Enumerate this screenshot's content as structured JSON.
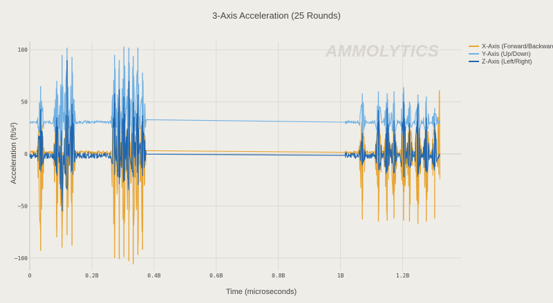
{
  "watermark": "AMMOLYTICS",
  "chart_data": {
    "type": "line",
    "title": "3-Axis Acceleration (25 Rounds)",
    "xlabel": "Time (microseconds)",
    "ylabel": "Acceleration (ft/s²)",
    "x_ticks": [
      {
        "value": 0,
        "label": "0"
      },
      {
        "value": 0.2,
        "label": "0.2B"
      },
      {
        "value": 0.4,
        "label": "0.4B"
      },
      {
        "value": 0.6,
        "label": "0.6B"
      },
      {
        "value": 0.8,
        "label": "0.8B"
      },
      {
        "value": 1.0,
        "label": "1B"
      },
      {
        "value": 1.2,
        "label": "1.2B"
      }
    ],
    "y_ticks": [
      {
        "value": 100,
        "label": "100"
      },
      {
        "value": 50,
        "label": "50"
      },
      {
        "value": 0,
        "label": "0"
      },
      {
        "value": -50,
        "label": "−50"
      },
      {
        "value": -100,
        "label": "−100"
      }
    ],
    "xlim": [
      0,
      1.39
    ],
    "ylim": [
      -112,
      108
    ],
    "grid": true,
    "legend_position": "top-right",
    "series": [
      {
        "name": "X-Axis (Forward/Backward)",
        "color": "#e8a531",
        "baseline": 1.5,
        "noise": 1.5,
        "segments": [
          [
            0.0,
            0.375
          ],
          [
            1.015,
            1.32
          ]
        ],
        "spikes": [
          {
            "x": 0.035,
            "y": -93
          },
          {
            "x": 0.087,
            "y": -80
          },
          {
            "x": 0.104,
            "y": -90
          },
          {
            "x": 0.12,
            "y": -78
          },
          {
            "x": 0.136,
            "y": -88
          },
          {
            "x": 0.273,
            "y": -100
          },
          {
            "x": 0.288,
            "y": -101
          },
          {
            "x": 0.303,
            "y": -99
          },
          {
            "x": 0.319,
            "y": -103
          },
          {
            "x": 0.333,
            "y": -106
          },
          {
            "x": 0.348,
            "y": -97
          },
          {
            "x": 0.363,
            "y": -92
          },
          {
            "x": 1.07,
            "y": -63
          },
          {
            "x": 1.122,
            "y": -65
          },
          {
            "x": 1.15,
            "y": -64
          },
          {
            "x": 1.172,
            "y": -62
          },
          {
            "x": 1.203,
            "y": -64
          },
          {
            "x": 1.222,
            "y": -65
          },
          {
            "x": 1.249,
            "y": -67
          },
          {
            "x": 1.276,
            "y": -65
          },
          {
            "x": 1.303,
            "y": -62
          },
          {
            "x": 1.318,
            "y": 61
          }
        ]
      },
      {
        "name": "Y-Axis (Up/Down)",
        "color": "#6fb0e3",
        "baseline": 30.5,
        "noise": 1.5,
        "segments": [
          [
            0.0,
            0.375
          ],
          [
            1.015,
            1.32
          ]
        ],
        "spikes": [
          {
            "x": 0.035,
            "y": 65
          },
          {
            "x": 0.087,
            "y": 70
          },
          {
            "x": 0.104,
            "y": 95
          },
          {
            "x": 0.12,
            "y": 102
          },
          {
            "x": 0.136,
            "y": 93
          },
          {
            "x": 0.273,
            "y": 95
          },
          {
            "x": 0.288,
            "y": 90
          },
          {
            "x": 0.303,
            "y": 103
          },
          {
            "x": 0.319,
            "y": 102
          },
          {
            "x": 0.333,
            "y": 94
          },
          {
            "x": 0.348,
            "y": 102
          },
          {
            "x": 0.363,
            "y": 78
          },
          {
            "x": 1.07,
            "y": 58
          },
          {
            "x": 1.122,
            "y": 60
          },
          {
            "x": 1.15,
            "y": 58
          },
          {
            "x": 1.172,
            "y": 60
          },
          {
            "x": 1.203,
            "y": 64
          },
          {
            "x": 1.222,
            "y": 50
          },
          {
            "x": 1.249,
            "y": 57
          },
          {
            "x": 1.276,
            "y": 55
          },
          {
            "x": 1.303,
            "y": 44
          }
        ]
      },
      {
        "name": "Z-Axis (Left/Right)",
        "color": "#1f66b0",
        "baseline": -1.5,
        "noise": 3,
        "segments": [
          [
            0.0,
            0.375
          ],
          [
            1.015,
            1.32
          ]
        ],
        "spikes": [
          {
            "x": 0.035,
            "y": 43
          },
          {
            "x": 0.087,
            "y": 35
          },
          {
            "x": 0.104,
            "y": -55
          },
          {
            "x": 0.12,
            "y": 90
          },
          {
            "x": 0.136,
            "y": 48
          },
          {
            "x": 0.273,
            "y": 58
          },
          {
            "x": 0.288,
            "y": 62
          },
          {
            "x": 0.303,
            "y": 55
          },
          {
            "x": 0.319,
            "y": 70
          },
          {
            "x": 0.333,
            "y": 50
          },
          {
            "x": 0.348,
            "y": 57
          },
          {
            "x": 0.363,
            "y": 37
          },
          {
            "x": 1.07,
            "y": 20
          },
          {
            "x": 1.122,
            "y": 42
          },
          {
            "x": 1.15,
            "y": 44
          },
          {
            "x": 1.172,
            "y": 32
          },
          {
            "x": 1.203,
            "y": 50
          },
          {
            "x": 1.222,
            "y": 30
          },
          {
            "x": 1.249,
            "y": 48
          },
          {
            "x": 1.276,
            "y": 35
          },
          {
            "x": 1.303,
            "y": 30
          }
        ]
      }
    ]
  }
}
